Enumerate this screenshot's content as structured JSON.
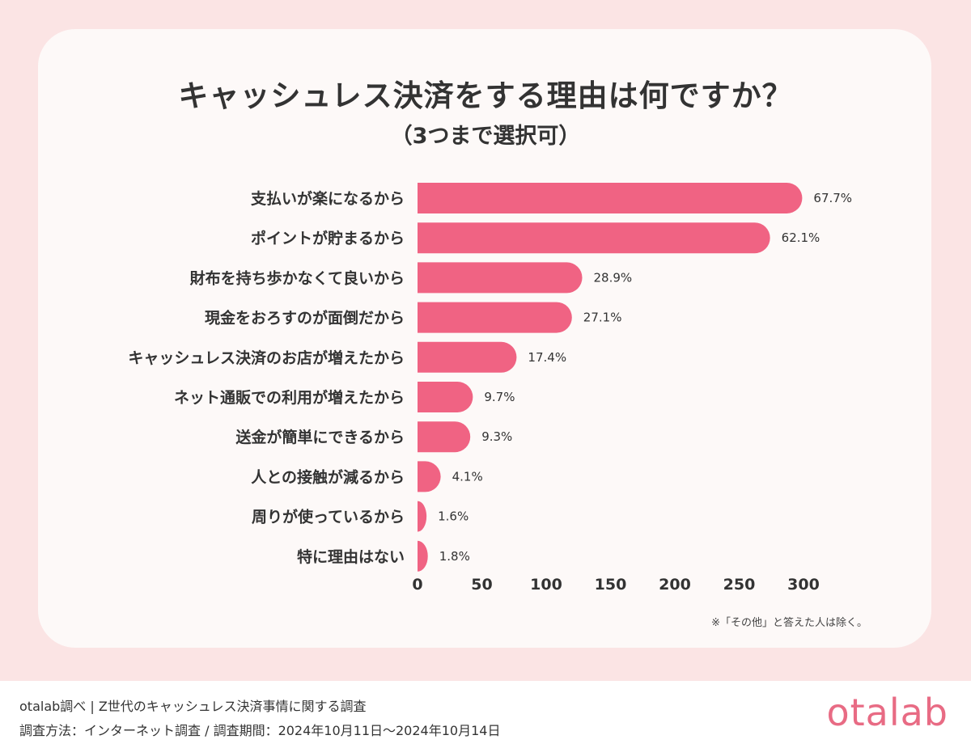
{
  "title": "キャッシュレス決済をする理由は何ですか？",
  "subtitle": "（3つまで選択可）",
  "footnote": "※「その他」と答えた人は除く。",
  "source_line": "otalab調べ | Z世代のキャッシュレス決済事情に関する調査",
  "method_line": "調査方法：インターネット調査 / 調査期間：2024年10月11日〜2024年10月14日",
  "logo_text": "otalab",
  "colors": {
    "bar": "#f06383",
    "logo": "#e86b84"
  },
  "chart_data": {
    "type": "bar",
    "orientation": "horizontal",
    "categories": [
      "支払いが楽になるから",
      "ポイントが貯まるから",
      "財布を持ち歩かなくて良いから",
      "現金をおろすのが面倒だから",
      "キャッシュレス決済のお店が増えたから",
      "ネット通販での利用が増えたから",
      "送金が簡単にできるから",
      "人との接触が減るから",
      "周りが使っているから",
      "特に理由はない"
    ],
    "values": [
      299,
      274,
      128,
      120,
      77,
      43,
      41,
      18,
      7,
      8
    ],
    "data_labels": [
      "67.7%",
      "62.1%",
      "28.9%",
      "27.1%",
      "17.4%",
      "9.7%",
      "9.3%",
      "4.1%",
      "1.6%",
      "1.8%"
    ],
    "xlim": [
      0,
      300
    ],
    "xticks": [
      "0",
      "50",
      "100",
      "150",
      "200",
      "250",
      "300"
    ],
    "grid": false,
    "legend": "none"
  }
}
